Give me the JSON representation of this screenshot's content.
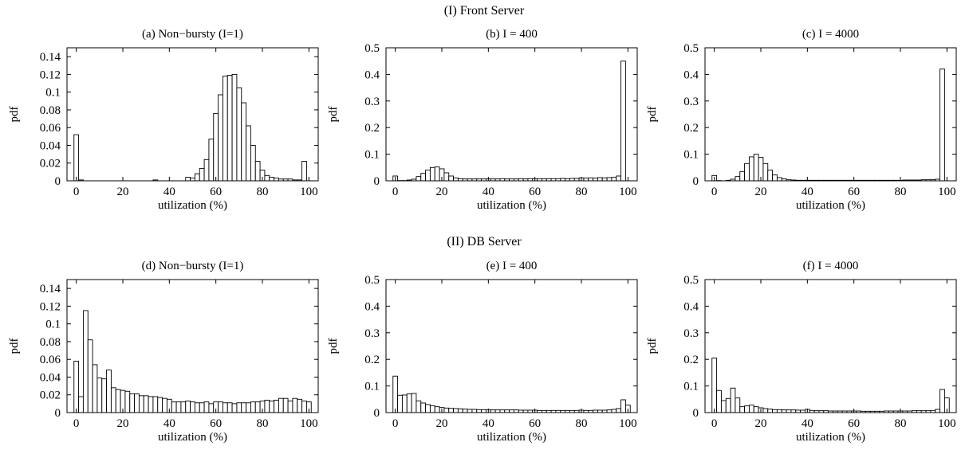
{
  "figure": {
    "sections": [
      {
        "title": "(I) Front Server"
      },
      {
        "title": "(II) DB Server"
      }
    ]
  },
  "chart_data": [
    {
      "type": "bar",
      "title": "(a) Non−bursty (I=1)",
      "xlabel": "utilization (%)",
      "ylabel": "pdf",
      "xlim": [
        -4,
        104
      ],
      "ylim": [
        0,
        0.15
      ],
      "xticks": [
        0,
        20,
        40,
        60,
        80,
        100
      ],
      "yticks": [
        0,
        0.02,
        0.04,
        0.06,
        0.08,
        0.1,
        0.12,
        0.14
      ],
      "ytick_labels": [
        "0",
        "0.02",
        "0.04",
        "0.06",
        "0.08",
        "0.1",
        "0.12",
        "0.14"
      ],
      "bin_width": 2,
      "x": [
        0,
        2,
        4,
        6,
        8,
        10,
        12,
        14,
        16,
        18,
        20,
        22,
        24,
        26,
        28,
        30,
        32,
        34,
        36,
        38,
        40,
        42,
        44,
        46,
        48,
        50,
        52,
        54,
        56,
        58,
        60,
        62,
        64,
        66,
        68,
        70,
        72,
        74,
        76,
        78,
        80,
        82,
        84,
        86,
        88,
        90,
        92,
        94,
        96,
        98,
        100
      ],
      "values": [
        0.052,
        0.001,
        0,
        0,
        0,
        0,
        0,
        0,
        0,
        0,
        0,
        0,
        0,
        0,
        0,
        0,
        0,
        0.001,
        0,
        0,
        0,
        0,
        0,
        0,
        0.004,
        0.003,
        0.008,
        0.014,
        0.024,
        0.047,
        0.076,
        0.097,
        0.118,
        0.119,
        0.12,
        0.105,
        0.088,
        0.062,
        0.04,
        0.022,
        0.012,
        0.006,
        0.004,
        0.003,
        0.002,
        0.002,
        0.002,
        0.001,
        0.001,
        0.022,
        0
      ]
    },
    {
      "type": "bar",
      "title": "(b) I = 400",
      "xlabel": "utilization (%)",
      "ylabel": "pdf",
      "xlim": [
        -4,
        104
      ],
      "ylim": [
        0,
        0.5
      ],
      "xticks": [
        0,
        20,
        40,
        60,
        80,
        100
      ],
      "yticks": [
        0,
        0.1,
        0.2,
        0.3,
        0.4,
        0.5
      ],
      "ytick_labels": [
        "0",
        "0.1",
        "0.2",
        "0.3",
        "0.4",
        "0.5"
      ],
      "bin_width": 2,
      "x": [
        0,
        2,
        4,
        6,
        8,
        10,
        12,
        14,
        16,
        18,
        20,
        22,
        24,
        26,
        28,
        30,
        32,
        34,
        36,
        38,
        40,
        42,
        44,
        46,
        48,
        50,
        52,
        54,
        56,
        58,
        60,
        62,
        64,
        66,
        68,
        70,
        72,
        74,
        76,
        78,
        80,
        82,
        84,
        86,
        88,
        90,
        92,
        94,
        96,
        98,
        100
      ],
      "values": [
        0.018,
        0.001,
        0.001,
        0.003,
        0.006,
        0.016,
        0.028,
        0.04,
        0.05,
        0.052,
        0.045,
        0.03,
        0.018,
        0.011,
        0.008,
        0.007,
        0.007,
        0.007,
        0.007,
        0.007,
        0.007,
        0.007,
        0.007,
        0.008,
        0.007,
        0.007,
        0.007,
        0.008,
        0.007,
        0.008,
        0.008,
        0.008,
        0.008,
        0.008,
        0.008,
        0.008,
        0.009,
        0.008,
        0.009,
        0.009,
        0.011,
        0.01,
        0.011,
        0.01,
        0.012,
        0.011,
        0.012,
        0.013,
        0.018,
        0.45,
        0
      ]
    },
    {
      "type": "bar",
      "title": "(c) I = 4000",
      "xlabel": "utilization (%)",
      "ylabel": "pdf",
      "xlim": [
        -4,
        104
      ],
      "ylim": [
        0,
        0.5
      ],
      "xticks": [
        0,
        20,
        40,
        60,
        80,
        100
      ],
      "yticks": [
        0,
        0.1,
        0.2,
        0.3,
        0.4,
        0.5
      ],
      "ytick_labels": [
        "0",
        "0.1",
        "0.2",
        "0.3",
        "0.4",
        "0.5"
      ],
      "bin_width": 2,
      "x": [
        0,
        2,
        4,
        6,
        8,
        10,
        12,
        14,
        16,
        18,
        20,
        22,
        24,
        26,
        28,
        30,
        32,
        34,
        36,
        38,
        40,
        42,
        44,
        46,
        48,
        50,
        52,
        54,
        56,
        58,
        60,
        62,
        64,
        66,
        68,
        70,
        72,
        74,
        76,
        78,
        80,
        82,
        84,
        86,
        88,
        90,
        92,
        94,
        96,
        98,
        100
      ],
      "values": [
        0.02,
        0.001,
        0,
        0.002,
        0.006,
        0.016,
        0.035,
        0.065,
        0.09,
        0.1,
        0.088,
        0.065,
        0.04,
        0.022,
        0.012,
        0.007,
        0.004,
        0.003,
        0.002,
        0.002,
        0.002,
        0.002,
        0.002,
        0.002,
        0.002,
        0.002,
        0.002,
        0.002,
        0.002,
        0.002,
        0.002,
        0.002,
        0.002,
        0.002,
        0.002,
        0.002,
        0.002,
        0.002,
        0.002,
        0.002,
        0.002,
        0.003,
        0.003,
        0.003,
        0.003,
        0.004,
        0.004,
        0.004,
        0.006,
        0.42,
        0
      ]
    },
    {
      "type": "bar",
      "title": "(d) Non−bursty (I=1)",
      "xlabel": "utilization (%)",
      "ylabel": "pdf",
      "xlim": [
        -4,
        104
      ],
      "ylim": [
        0,
        0.15
      ],
      "xticks": [
        0,
        20,
        40,
        60,
        80,
        100
      ],
      "yticks": [
        0,
        0.02,
        0.04,
        0.06,
        0.08,
        0.1,
        0.12,
        0.14
      ],
      "ytick_labels": [
        "0",
        "0.02",
        "0.04",
        "0.06",
        "0.08",
        "0.1",
        "0.12",
        "0.14"
      ],
      "bin_width": 2,
      "x": [
        0,
        2,
        4,
        6,
        8,
        10,
        12,
        14,
        16,
        18,
        20,
        22,
        24,
        26,
        28,
        30,
        32,
        34,
        36,
        38,
        40,
        42,
        44,
        46,
        48,
        50,
        52,
        54,
        56,
        58,
        60,
        62,
        64,
        66,
        68,
        70,
        72,
        74,
        76,
        78,
        80,
        82,
        84,
        86,
        88,
        90,
        92,
        94,
        96,
        98,
        100
      ],
      "values": [
        0.058,
        0.018,
        0.115,
        0.082,
        0.054,
        0.039,
        0.038,
        0.048,
        0.028,
        0.026,
        0.025,
        0.024,
        0.021,
        0.021,
        0.019,
        0.019,
        0.018,
        0.018,
        0.017,
        0.016,
        0.015,
        0.012,
        0.012,
        0.012,
        0.013,
        0.012,
        0.011,
        0.011,
        0.012,
        0.01,
        0.012,
        0.012,
        0.011,
        0.011,
        0.01,
        0.011,
        0.011,
        0.011,
        0.012,
        0.012,
        0.013,
        0.014,
        0.013,
        0.014,
        0.016,
        0.016,
        0.013,
        0.016,
        0.015,
        0.013,
        0.012
      ]
    },
    {
      "type": "bar",
      "title": "(e) I = 400",
      "xlabel": "utilization (%)",
      "ylabel": "pdf",
      "xlim": [
        -4,
        104
      ],
      "ylim": [
        0,
        0.5
      ],
      "xticks": [
        0,
        20,
        40,
        60,
        80,
        100
      ],
      "yticks": [
        0,
        0.1,
        0.2,
        0.3,
        0.4,
        0.5
      ],
      "ytick_labels": [
        "0",
        "0.1",
        "0.2",
        "0.3",
        "0.4",
        "0.5"
      ],
      "bin_width": 2,
      "x": [
        0,
        2,
        4,
        6,
        8,
        10,
        12,
        14,
        16,
        18,
        20,
        22,
        24,
        26,
        28,
        30,
        32,
        34,
        36,
        38,
        40,
        42,
        44,
        46,
        48,
        50,
        52,
        54,
        56,
        58,
        60,
        62,
        64,
        66,
        68,
        70,
        72,
        74,
        76,
        78,
        80,
        82,
        84,
        86,
        88,
        90,
        92,
        94,
        96,
        98,
        100
      ],
      "values": [
        0.137,
        0.065,
        0.066,
        0.07,
        0.072,
        0.044,
        0.036,
        0.03,
        0.026,
        0.022,
        0.019,
        0.017,
        0.016,
        0.015,
        0.014,
        0.013,
        0.012,
        0.012,
        0.011,
        0.011,
        0.011,
        0.01,
        0.01,
        0.01,
        0.01,
        0.01,
        0.01,
        0.009,
        0.009,
        0.009,
        0.009,
        0.008,
        0.008,
        0.008,
        0.008,
        0.008,
        0.008,
        0.008,
        0.008,
        0.008,
        0.009,
        0.008,
        0.008,
        0.009,
        0.009,
        0.009,
        0.01,
        0.012,
        0.015,
        0.048,
        0.028
      ]
    },
    {
      "type": "bar",
      "title": "(f) I = 4000",
      "xlabel": "utilization (%)",
      "ylabel": "pdf",
      "xlim": [
        -4,
        104
      ],
      "ylim": [
        0,
        0.5
      ],
      "xticks": [
        0,
        20,
        40,
        60,
        80,
        100
      ],
      "yticks": [
        0,
        0.1,
        0.2,
        0.3,
        0.4,
        0.5
      ],
      "ytick_labels": [
        "0",
        "0.1",
        "0.2",
        "0.3",
        "0.4",
        "0.5"
      ],
      "bin_width": 2,
      "x": [
        0,
        2,
        4,
        6,
        8,
        10,
        12,
        14,
        16,
        18,
        20,
        22,
        24,
        26,
        28,
        30,
        32,
        34,
        36,
        38,
        40,
        42,
        44,
        46,
        48,
        50,
        52,
        54,
        56,
        58,
        60,
        62,
        64,
        66,
        68,
        70,
        72,
        74,
        76,
        78,
        80,
        82,
        84,
        86,
        88,
        90,
        92,
        94,
        96,
        98,
        100
      ],
      "values": [
        0.205,
        0.083,
        0.045,
        0.053,
        0.092,
        0.055,
        0.022,
        0.025,
        0.028,
        0.022,
        0.018,
        0.015,
        0.013,
        0.011,
        0.011,
        0.01,
        0.01,
        0.01,
        0.009,
        0.009,
        0.012,
        0.008,
        0.007,
        0.007,
        0.007,
        0.006,
        0.006,
        0.006,
        0.006,
        0.006,
        0.006,
        0.006,
        0.005,
        0.005,
        0.005,
        0.005,
        0.005,
        0.006,
        0.006,
        0.006,
        0.006,
        0.006,
        0.006,
        0.007,
        0.007,
        0.007,
        0.007,
        0.008,
        0.012,
        0.087,
        0.055
      ]
    }
  ]
}
